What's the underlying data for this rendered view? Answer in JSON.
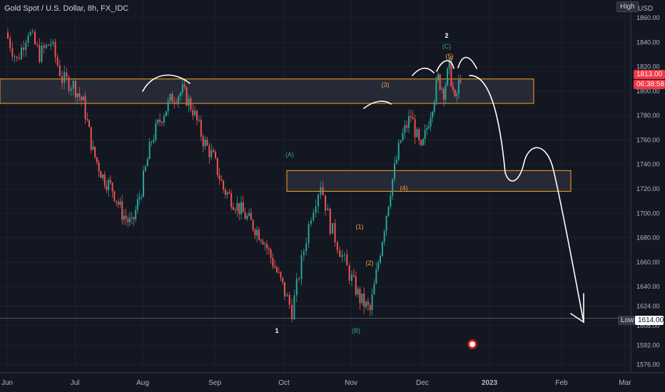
{
  "header": {
    "title": "Gold Spot / U.S. Dollar, 8h, FX_IDC",
    "high_label": "High",
    "currency": "USD"
  },
  "colors": {
    "background": "#131722",
    "up": "#26a69a",
    "down": "#ef5350",
    "zone_fill": "#2a2e39",
    "zone_border": "#f5a623",
    "drawing": "#ffffff",
    "wave_teal": "#26a69a",
    "wave_orange": "#f5a040",
    "price_badge": "#f23645"
  },
  "chart_data": {
    "type": "candlestick",
    "timeframe": "8h",
    "y_axis": {
      "range": [
        1570,
        1870
      ],
      "ticks": [
        1576,
        1592,
        1608,
        1624,
        1640,
        1660,
        1680,
        1700,
        1720,
        1740,
        1760,
        1780,
        1800,
        1820,
        1840,
        1860
      ]
    },
    "x_axis": {
      "ticks": [
        "Jun",
        "Jul",
        "Aug",
        "Sep",
        "Oct",
        "Nov",
        "Dec",
        "2023",
        "Feb",
        "Mar"
      ]
    },
    "price_path": [
      [
        "Jun",
        1848
      ],
      [
        "Jun",
        1825
      ],
      [
        "Jun",
        1850
      ],
      [
        "Jun",
        1830
      ],
      [
        "Jun",
        1840
      ],
      [
        "Jun",
        1810
      ],
      [
        "Jul",
        1805
      ],
      [
        "Jul",
        1790
      ],
      [
        "Jul",
        1750
      ],
      [
        "Jul",
        1730
      ],
      [
        "Jul",
        1720
      ],
      [
        "Jul",
        1700
      ],
      [
        "Jul",
        1690
      ],
      [
        "Aug",
        1720
      ],
      [
        "Aug",
        1760
      ],
      [
        "Aug",
        1780
      ],
      [
        "Aug",
        1795
      ],
      [
        "Aug",
        1800
      ],
      [
        "Aug",
        1785
      ],
      [
        "Aug",
        1760
      ],
      [
        "Sep",
        1745
      ],
      [
        "Sep",
        1720
      ],
      [
        "Sep",
        1710
      ],
      [
        "Sep",
        1700
      ],
      [
        "Sep",
        1690
      ],
      [
        "Sep",
        1680
      ],
      [
        "Sep",
        1660
      ],
      [
        "Oct",
        1640
      ],
      [
        "Oct",
        1620
      ],
      [
        "Oct",
        1660
      ],
      [
        "Oct",
        1700
      ],
      [
        "Oct",
        1725
      ],
      [
        "Oct",
        1690
      ],
      [
        "Oct",
        1670
      ],
      [
        "Nov",
        1650
      ],
      [
        "Nov",
        1630
      ],
      [
        "Nov",
        1620
      ],
      [
        "Nov",
        1670
      ],
      [
        "Nov",
        1720
      ],
      [
        "Nov",
        1760
      ],
      [
        "Nov",
        1780
      ],
      [
        "Dec",
        1750
      ],
      [
        "Dec",
        1770
      ],
      [
        "Dec",
        1790
      ],
      [
        "Dec",
        1810
      ],
      [
        "Dec",
        1800
      ],
      [
        "Dec",
        1820
      ],
      [
        "Dec",
        1790
      ],
      [
        "Dec",
        1813
      ]
    ],
    "zones": [
      {
        "from": "Jun",
        "to": "Jan",
        "top": 1810,
        "bottom": 1790
      },
      {
        "from": "Oct",
        "to": "Jan",
        "top": 1735,
        "bottom": 1718
      }
    ],
    "low_line": 1614,
    "wave_labels": [
      {
        "text": "2",
        "color": "white"
      },
      {
        "text": "(C)",
        "color": "teal"
      },
      {
        "text": "(5)",
        "color": "orange"
      },
      {
        "text": "(3)",
        "color": "orange"
      },
      {
        "text": "(A)",
        "color": "teal"
      },
      {
        "text": "(4)",
        "color": "orange"
      },
      {
        "text": "(1)",
        "color": "orange"
      },
      {
        "text": "(2)",
        "color": "orange"
      },
      {
        "text": "1",
        "color": "white"
      },
      {
        "text": "(B)",
        "color": "teal"
      }
    ],
    "current_price": "1813.00",
    "countdown": "06:38:58",
    "low_label": "Low",
    "low_value": "1614.00"
  }
}
